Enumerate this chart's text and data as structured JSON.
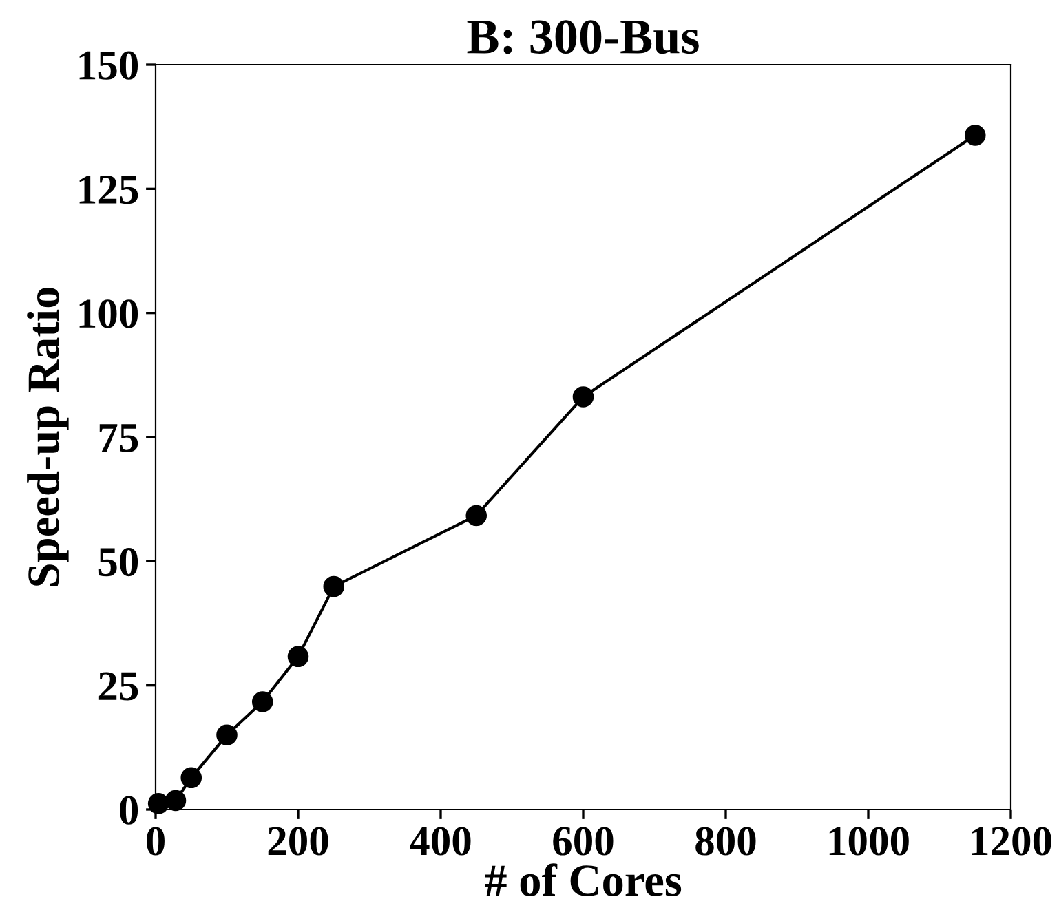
{
  "chart_data": {
    "type": "line",
    "title": "B: 300-Bus",
    "xlabel": "# of Cores",
    "ylabel": "Speed-up Ratio",
    "x": [
      4,
      28,
      50,
      100,
      150,
      200,
      250,
      450,
      600,
      1150
    ],
    "series": [
      {
        "color": "#000000",
        "values": [
          1.2,
          1.8,
          6.4,
          15.0,
          21.7,
          30.8,
          44.9,
          59.2,
          83.1,
          135.8
        ]
      }
    ],
    "xlim": [
      0,
      1200
    ],
    "xticks": [
      0,
      200,
      400,
      600,
      800,
      1000,
      1200
    ],
    "ylim": [
      0,
      150
    ],
    "yticks": [
      0,
      25,
      50,
      75,
      100,
      125,
      150
    ],
    "marker": "circle",
    "line_style": "solid",
    "grid": false,
    "legend": false
  }
}
